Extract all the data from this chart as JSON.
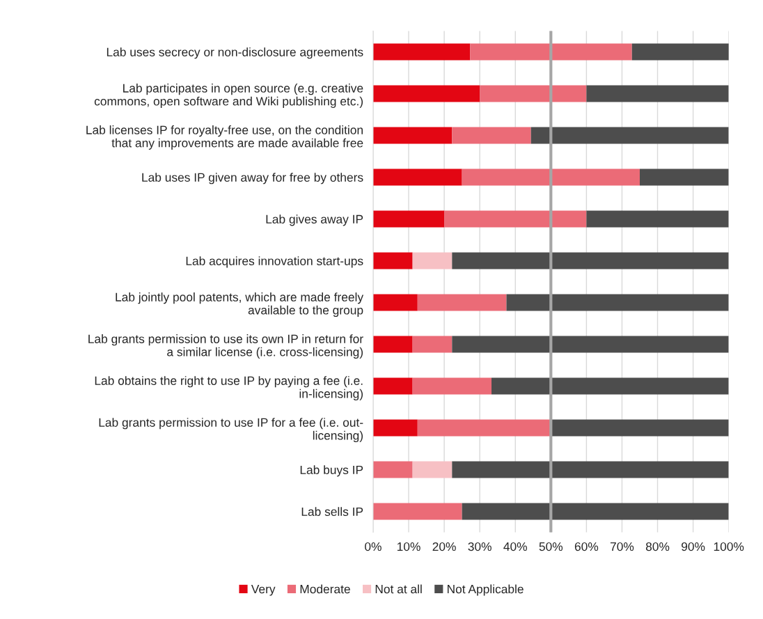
{
  "chart_data": {
    "type": "bar",
    "orientation": "horizontal",
    "stacked": true,
    "categories": [
      "Lab uses secrecy or non-disclosure agreements",
      "Lab participates in open source (e.g. creative\ncommons, open software and Wiki publishing etc.)",
      "Lab licenses IP for royalty-free use, on the condition\nthat any improvements are made available free",
      "Lab uses IP given away for free by others",
      "Lab gives away IP",
      "Lab acquires innovation start-ups",
      "Lab jointly pool patents, which are made freely\navailable to the group",
      "Lab grants permission to use its own IP in return for\na similar license (i.e. cross-licensing)",
      "Lab obtains the right to use IP by paying a fee (i.e.\nin-licensing)",
      "Lab grants permission to use IP for a fee (i.e. out-\nlicensing)",
      "Lab buys IP",
      "Lab sells IP"
    ],
    "series": [
      {
        "name": "Very",
        "color": "#e30613",
        "values": [
          27.3,
          30,
          22.2,
          25,
          20,
          11.1,
          12.5,
          11.1,
          11.1,
          12.5,
          0,
          0
        ]
      },
      {
        "name": "Moderate",
        "color": "#eb6b77",
        "values": [
          45.5,
          30,
          22.2,
          50,
          40,
          0,
          25,
          11.1,
          22.2,
          37.5,
          11.1,
          25
        ]
      },
      {
        "name": "Not at all",
        "color": "#f7c0c4",
        "values": [
          0,
          0,
          0,
          0,
          0,
          11.1,
          0,
          0,
          0,
          0,
          11.1,
          0
        ]
      },
      {
        "name": "Not Applicable",
        "color": "#4d4d4d",
        "values": [
          27.3,
          40,
          55.6,
          25,
          40,
          77.8,
          62.5,
          77.8,
          66.7,
          50,
          77.8,
          75
        ]
      }
    ],
    "xlim": [
      0,
      100
    ],
    "xticks": [
      {
        "value": 0,
        "label": "0%"
      },
      {
        "value": 10,
        "label": "10%"
      },
      {
        "value": 20,
        "label": "20%"
      },
      {
        "value": 30,
        "label": "30%"
      },
      {
        "value": 40,
        "label": "40%"
      },
      {
        "value": 50,
        "label": "50%"
      },
      {
        "value": 60,
        "label": "60%"
      },
      {
        "value": 70,
        "label": "70%"
      },
      {
        "value": 80,
        "label": "80%"
      },
      {
        "value": 90,
        "label": "90%"
      },
      {
        "value": 100,
        "label": "100%"
      }
    ],
    "ref_lines": [
      {
        "axis": "x",
        "value": 50,
        "color": "#a6a6a6"
      }
    ],
    "grid": "x",
    "legend": "bottom"
  }
}
